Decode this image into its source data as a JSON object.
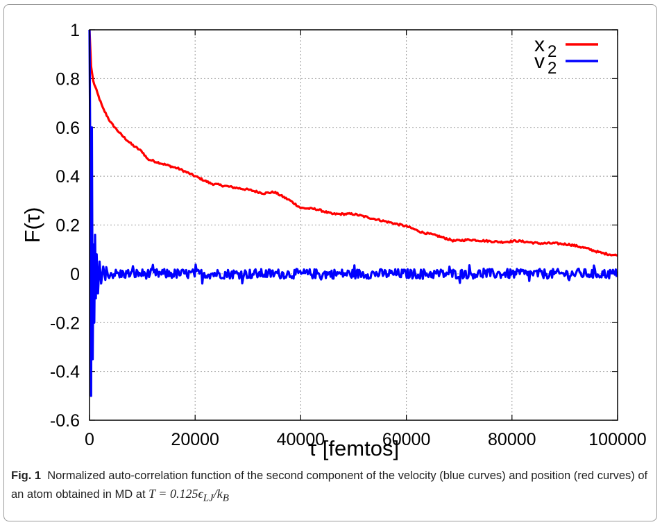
{
  "chart_data": {
    "type": "line",
    "xlabel": "τ [femtos]",
    "ylabel": "F(τ)",
    "xlim": [
      0,
      100000
    ],
    "ylim": [
      -0.6,
      1.0
    ],
    "xticks": [
      "0",
      "20000",
      "40000",
      "60000",
      "80000",
      "100000"
    ],
    "yticks": [
      "1",
      "0.8",
      "0.6",
      "0.4",
      "0.2",
      "0",
      "-0.2",
      "-0.4",
      "-0.6"
    ],
    "grid": true,
    "legend_position": "top-right",
    "series": [
      {
        "name": "x",
        "name_subscript": "2",
        "color": "#ff0000",
        "points": [
          [
            0,
            1.0
          ],
          [
            300,
            0.85
          ],
          [
            700,
            0.79
          ],
          [
            1500,
            0.74
          ],
          [
            2500,
            0.68
          ],
          [
            4000,
            0.62
          ],
          [
            6000,
            0.57
          ],
          [
            8000,
            0.53
          ],
          [
            10000,
            0.5
          ],
          [
            11000,
            0.47
          ],
          [
            14000,
            0.45
          ],
          [
            17000,
            0.43
          ],
          [
            20000,
            0.4
          ],
          [
            23000,
            0.37
          ],
          [
            27000,
            0.355
          ],
          [
            30000,
            0.345
          ],
          [
            33000,
            0.33
          ],
          [
            35000,
            0.335
          ],
          [
            38000,
            0.3
          ],
          [
            40000,
            0.27
          ],
          [
            43000,
            0.265
          ],
          [
            46000,
            0.245
          ],
          [
            50000,
            0.245
          ],
          [
            54000,
            0.225
          ],
          [
            58000,
            0.205
          ],
          [
            60000,
            0.195
          ],
          [
            63000,
            0.17
          ],
          [
            66000,
            0.155
          ],
          [
            69000,
            0.135
          ],
          [
            72000,
            0.14
          ],
          [
            75000,
            0.135
          ],
          [
            78000,
            0.13
          ],
          [
            81000,
            0.135
          ],
          [
            85000,
            0.125
          ],
          [
            88000,
            0.125
          ],
          [
            91000,
            0.12
          ],
          [
            94000,
            0.105
          ],
          [
            97000,
            0.085
          ],
          [
            100000,
            0.075
          ]
        ]
      },
      {
        "name": "v",
        "name_subscript": "2",
        "color": "#0000ff",
        "points": [
          [
            0,
            1.0
          ],
          [
            150,
            0.45
          ],
          [
            300,
            -0.5
          ],
          [
            450,
            0.6
          ],
          [
            600,
            -0.35
          ],
          [
            750,
            0.12
          ],
          [
            900,
            -0.2
          ],
          [
            1050,
            0.16
          ],
          [
            1200,
            -0.1
          ],
          [
            1350,
            0.08
          ],
          [
            1600,
            -0.08
          ],
          [
            1900,
            0.05
          ],
          [
            2200,
            -0.04
          ],
          [
            2600,
            0.03
          ],
          [
            3000,
            -0.025
          ]
        ],
        "noise_amplitude": 0.02,
        "baseline": 0.0
      }
    ]
  },
  "caption": {
    "label": "Fig. 1",
    "text": "Normalized auto-correlation function of the second component of the velocity (blue curves) and position (red curves) of an atom obtained in MD at",
    "math": "T = 0.125ϵ",
    "math_sub1": "LJ",
    "math_mid": "/k",
    "math_sub2": "B"
  }
}
